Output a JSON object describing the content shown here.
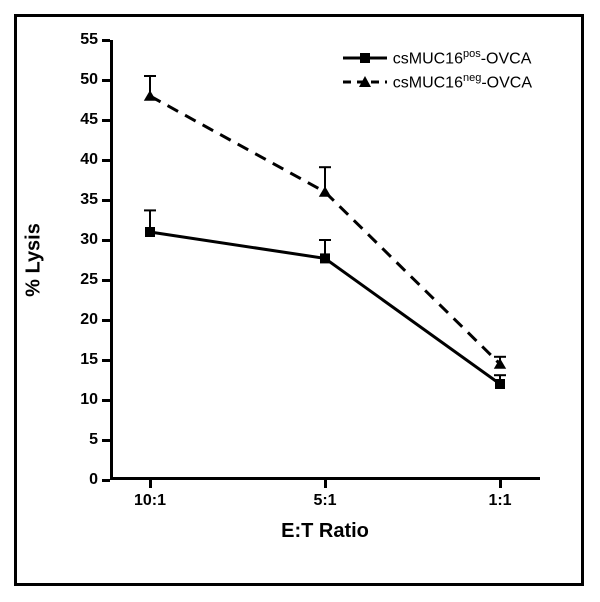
{
  "chart": {
    "type": "line",
    "background_color": "#ffffff",
    "frame_color": "#000000",
    "line_color": "#000000",
    "x": {
      "label": "E:T Ratio",
      "categories": [
        "10:1",
        "5:1",
        "1:1"
      ],
      "positions": [
        0,
        1,
        2
      ],
      "tick_len": 8,
      "label_fontsize": 16,
      "title_fontsize": 20
    },
    "y": {
      "label": "% Lysis",
      "min": 0,
      "max": 55,
      "ticks": [
        0,
        5,
        10,
        15,
        20,
        25,
        30,
        35,
        40,
        45,
        50,
        55
      ],
      "tick_len": 8,
      "label_fontsize": 16,
      "title_fontsize": 20
    },
    "series": [
      {
        "id": "pos",
        "label_prefix": "csMUC16",
        "label_sup": "pos",
        "label_suffix": "-OVCA",
        "marker": "square",
        "marker_size": 10,
        "line_style": "solid",
        "line_width": 3,
        "color": "#000000",
        "x": [
          0,
          1,
          2
        ],
        "y": [
          31.0,
          27.7,
          12.0
        ],
        "err": [
          2.7,
          2.3,
          1.1
        ]
      },
      {
        "id": "neg",
        "label_prefix": "csMUC16",
        "label_sup": "neg",
        "label_suffix": "-OVCA",
        "marker": "triangle",
        "marker_size": 10,
        "line_style": "dashed",
        "line_width": 3,
        "color": "#000000",
        "x": [
          0,
          1,
          2
        ],
        "y": [
          48.0,
          36.0,
          14.5
        ],
        "err": [
          2.5,
          3.1,
          0.9
        ]
      }
    ],
    "legend": {
      "position": "top-right"
    }
  }
}
